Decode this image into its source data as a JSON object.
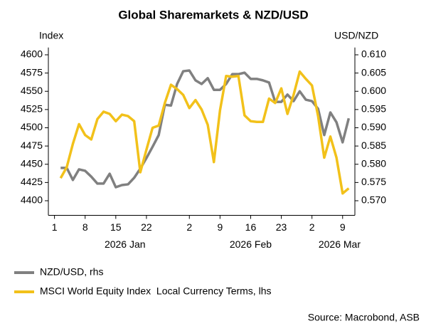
{
  "chart_data": {
    "type": "line",
    "title": "Global Sharemarkets & NZD/USD",
    "y_label": "Index",
    "y2_label": "USD/NZD",
    "source": "Source: Macrobond, ASB",
    "x": [
      1,
      2,
      3,
      4,
      5,
      6,
      7,
      8,
      9,
      10,
      11,
      12,
      13,
      14,
      15,
      16,
      17,
      18,
      19,
      20,
      21,
      22,
      23,
      24,
      25,
      26,
      27,
      28,
      29,
      30,
      31,
      32,
      33,
      34,
      35,
      36,
      37,
      38,
      39,
      40,
      41,
      42,
      43,
      44,
      45,
      46,
      47,
      48
    ],
    "xlim": [
      -1,
      49
    ],
    "xticks": [
      {
        "value": 0,
        "label": "1"
      },
      {
        "value": 5,
        "label": "8"
      },
      {
        "value": 10,
        "label": "15"
      },
      {
        "value": 15,
        "label": "22"
      },
      {
        "value": 22,
        "label": "2"
      },
      {
        "value": 27,
        "label": "9"
      },
      {
        "value": 32,
        "label": "16"
      },
      {
        "value": 37,
        "label": "23"
      },
      {
        "value": 42,
        "label": "2"
      },
      {
        "value": 47,
        "label": "9"
      }
    ],
    "x_group_labels": [
      {
        "value": 11.5,
        "label": "2026 Jan"
      },
      {
        "value": 32,
        "label": "2026 Feb"
      },
      {
        "value": 46.5,
        "label": "2026 Mar"
      }
    ],
    "ylim": [
      4380,
      4610
    ],
    "yticks": [
      4400,
      4425,
      4450,
      4475,
      4500,
      4525,
      4550,
      4575,
      4600
    ],
    "y2lim": [
      0.566,
      0.612
    ],
    "y2ticks": [
      {
        "value": 0.57,
        "label": "0.570"
      },
      {
        "value": 0.575,
        "label": "0.575"
      },
      {
        "value": 0.58,
        "label": "0.580"
      },
      {
        "value": 0.585,
        "label": "0.585"
      },
      {
        "value": 0.59,
        "label": "0.590"
      },
      {
        "value": 0.595,
        "label": "0.595"
      },
      {
        "value": 0.6,
        "label": "0.600"
      },
      {
        "value": 0.605,
        "label": "0.605"
      },
      {
        "value": 0.61,
        "label": "0.610"
      }
    ],
    "series": [
      {
        "name": "NZD/USD, rhs",
        "color": "#808080",
        "axis": "y2",
        "values": [
          0.579,
          0.579,
          0.5757,
          0.5786,
          0.5782,
          0.5766,
          0.5747,
          0.5747,
          0.5774,
          0.5737,
          0.5743,
          0.5745,
          0.5763,
          0.5788,
          0.5817,
          0.5848,
          0.588,
          0.5963,
          0.5961,
          0.602,
          0.6055,
          0.6057,
          0.603,
          0.602,
          0.6036,
          0.6004,
          0.6004,
          0.602,
          0.6047,
          0.6047,
          0.6051,
          0.6034,
          0.6034,
          0.603,
          0.6024,
          0.5971,
          0.5971,
          0.5991,
          0.5973,
          0.6,
          0.5977,
          0.5973,
          0.5952,
          0.588,
          0.5942,
          0.5915,
          0.586,
          0.5926
        ]
      },
      {
        "name": "MSCI World Equity Index  Local Currency Terms, lhs",
        "color": "#f2c11a",
        "values": [
          4431,
          4446,
          4478,
          4505,
          4490,
          4484,
          4512,
          4522,
          4519,
          4509,
          4518,
          4516,
          4509,
          4439,
          4470,
          4500,
          4503,
          4534,
          4559,
          4553,
          4545,
          4527,
          4538,
          4525,
          4504,
          4453,
          4524,
          4571,
          4570,
          4571,
          4517,
          4509,
          4508,
          4508,
          4540,
          4534,
          4554,
          4519,
          4545,
          4577,
          4567,
          4558,
          4516,
          4459,
          4488,
          4459,
          4410,
          4417
        ]
      }
    ]
  }
}
